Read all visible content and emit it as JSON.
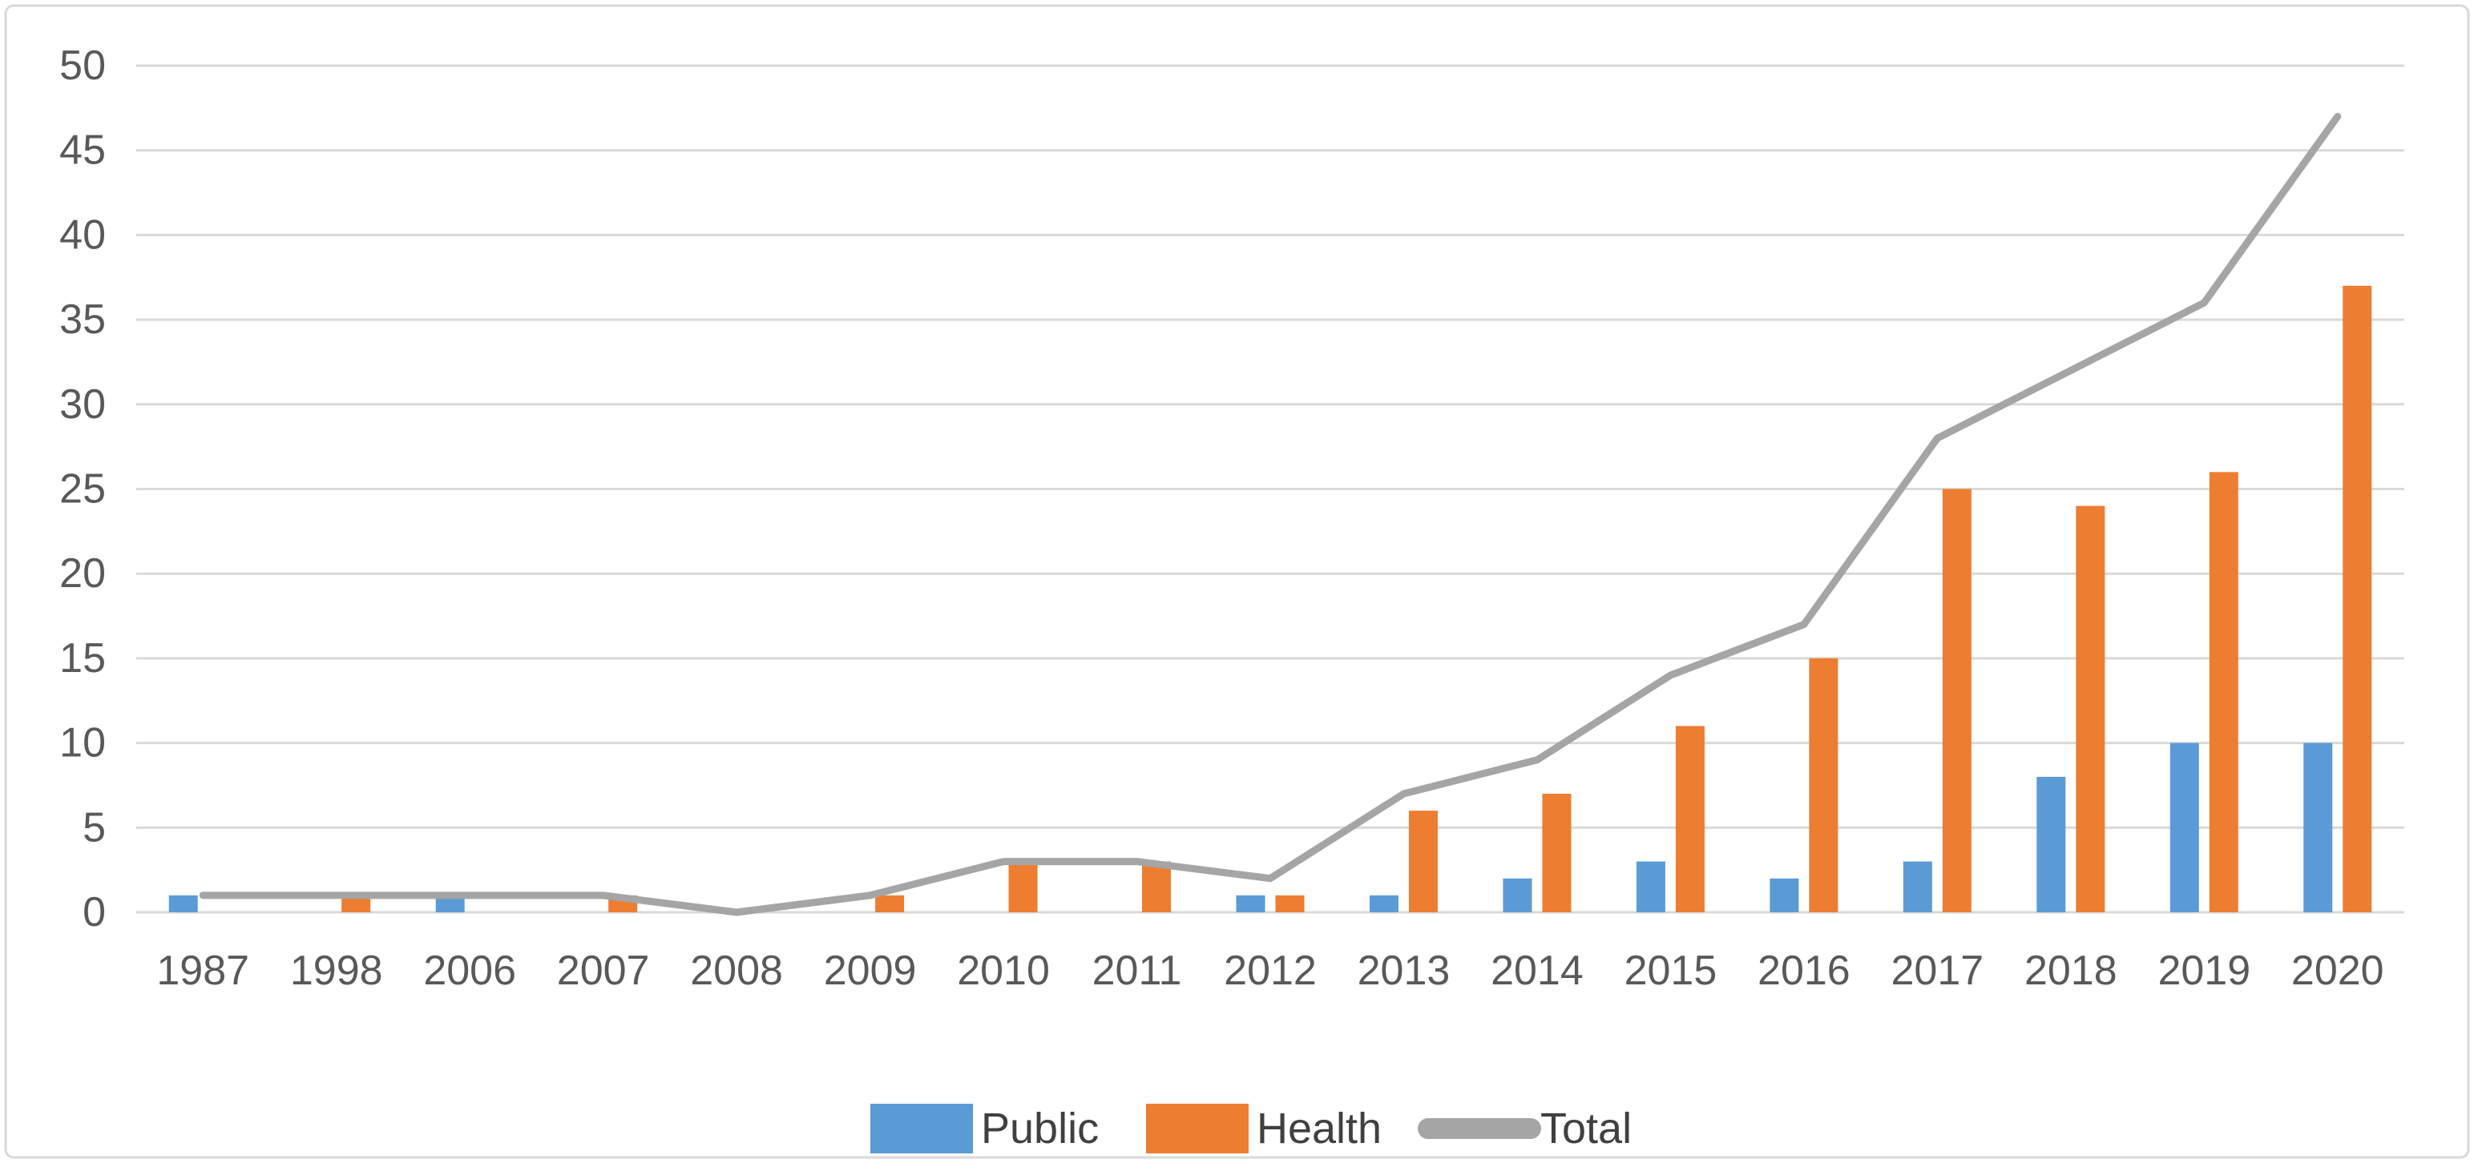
{
  "figure": {
    "background": "#FFFFFF",
    "frame_border_color": "#D9D9D9"
  },
  "chart_data": {
    "type": "combo-bar-line",
    "title": "",
    "categories": [
      "1987",
      "1998",
      "2006",
      "2007",
      "2008",
      "2009",
      "2010",
      "2011",
      "2012",
      "2013",
      "2014",
      "2015",
      "2016",
      "2017",
      "2018",
      "2019",
      "2020"
    ],
    "series": [
      {
        "name": "Public",
        "type": "bar",
        "color": "#5B9BD5",
        "values": [
          1,
          0,
          1,
          0,
          0,
          0,
          0,
          0,
          1,
          1,
          2,
          3,
          2,
          3,
          8,
          10,
          10
        ]
      },
      {
        "name": "Health",
        "type": "bar",
        "color": "#ED7D31",
        "values": [
          0,
          1,
          0,
          1,
          0,
          1,
          3,
          3,
          1,
          6,
          7,
          11,
          15,
          25,
          24,
          26,
          37
        ]
      },
      {
        "name": "Total",
        "type": "line",
        "color": "#A5A5A5",
        "values": [
          1,
          1,
          1,
          1,
          0,
          1,
          3,
          3,
          2,
          7,
          9,
          14,
          17,
          28,
          32,
          36,
          47
        ]
      }
    ],
    "ylim": [
      0,
      50
    ],
    "ytick_step": 5,
    "yticks": [
      "0",
      "5",
      "10",
      "15",
      "20",
      "25",
      "30",
      "35",
      "40",
      "45",
      "50"
    ],
    "grid": true,
    "gridline_color": "#D9D9D9",
    "tick_label_color": "#595959",
    "legend_text_color": "#404040",
    "legend_position": "bottom",
    "legend": [
      "Public",
      "Health",
      "Total"
    ]
  }
}
